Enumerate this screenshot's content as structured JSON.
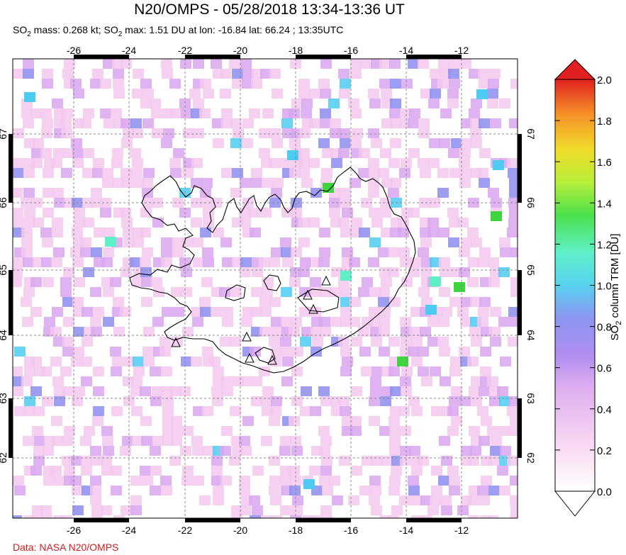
{
  "header": {
    "title": "N20/OMPS - 05/28/2018 13:34-13:36 UT",
    "subtitle_lead": "SO",
    "subtitle_sub1": "2",
    "subtitle_mid": " mass: 0.268 kt; SO",
    "subtitle_sub2": "2",
    "subtitle_tail": " max: 1.51 DU at lon: -16.84 lat: 66.24 ; 13:35UTC"
  },
  "map": {
    "lon_ticks": [
      "-26",
      "-24",
      "-22",
      "-20",
      "-18",
      "-16",
      "-14",
      "-12"
    ],
    "lat_ticks": [
      "67",
      "66",
      "65",
      "64",
      "63",
      "62"
    ],
    "grid": true,
    "region": "Iceland",
    "volcano_markers": 7
  },
  "colorbar": {
    "label_main": "SO",
    "label_sub": "2",
    "label_tail": " column TRM [DU]",
    "ticks": [
      "2.0",
      "1.8",
      "1.6",
      "1.4",
      "1.2",
      "1.0",
      "0.8",
      "0.6",
      "0.4",
      "0.2",
      "0.0"
    ],
    "colors": [
      "#ffffff",
      "#f5c8ee",
      "#d9a6f0",
      "#8c8cf0",
      "#4ecbf0",
      "#5ff0c8",
      "#3ed43e",
      "#c8f03c",
      "#f0dc28",
      "#f58c28",
      "#e02020"
    ]
  },
  "footer": {
    "credit": "Data: NASA N20/OMPS"
  }
}
